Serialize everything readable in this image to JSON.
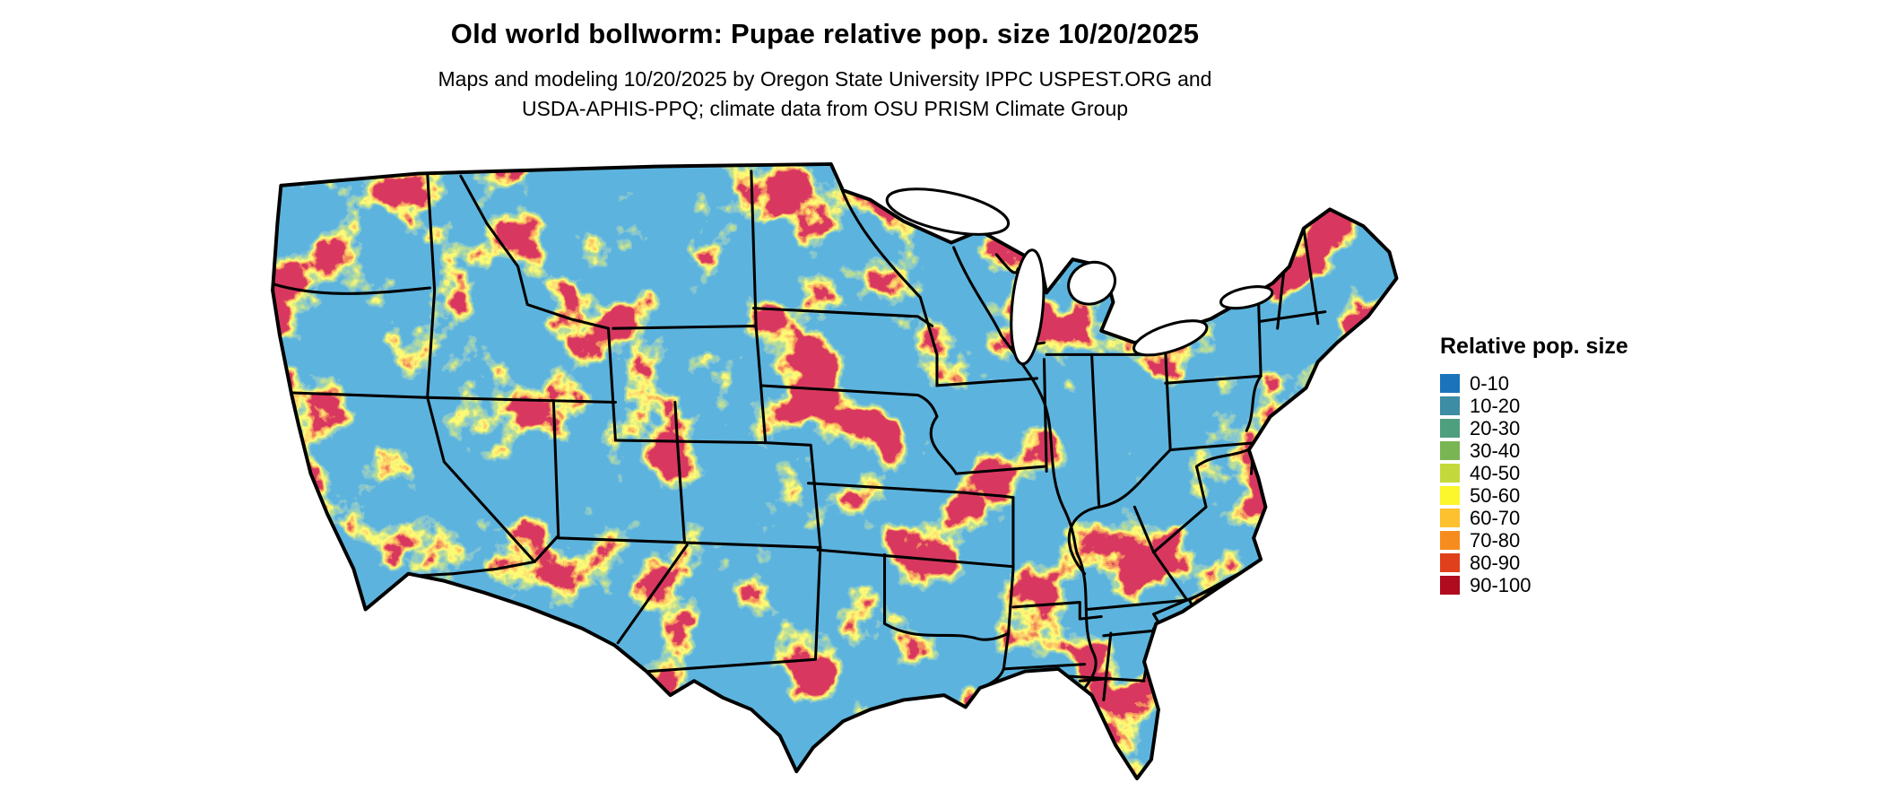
{
  "header": {
    "title": "Old world bollworm: Pupae relative pop. size 10/20/2025",
    "subtitle_line1": "Maps and modeling 10/20/2025 by Oregon State University IPPC USPEST.ORG and",
    "subtitle_line2": "USDA-APHIS-PPQ; climate data from OSU PRISM Climate Group"
  },
  "legend": {
    "title": "Relative pop. size",
    "entries": [
      {
        "label": "0-10",
        "color": "#1b74bb"
      },
      {
        "label": "10-20",
        "color": "#3d8da4"
      },
      {
        "label": "20-30",
        "color": "#4e9f7e"
      },
      {
        "label": "30-40",
        "color": "#7ab554"
      },
      {
        "label": "40-50",
        "color": "#c3d93b"
      },
      {
        "label": "50-60",
        "color": "#fcf62d"
      },
      {
        "label": "60-70",
        "color": "#fdc02e"
      },
      {
        "label": "70-80",
        "color": "#f78c1e"
      },
      {
        "label": "80-90",
        "color": "#e1401d"
      },
      {
        "label": "90-100",
        "color": "#b00b1e"
      }
    ]
  },
  "map": {
    "name": "contiguous-us-relative-population-raster",
    "base_color": "#1b74bb",
    "border_color": "#000000",
    "lake_color": "#ffffff"
  }
}
